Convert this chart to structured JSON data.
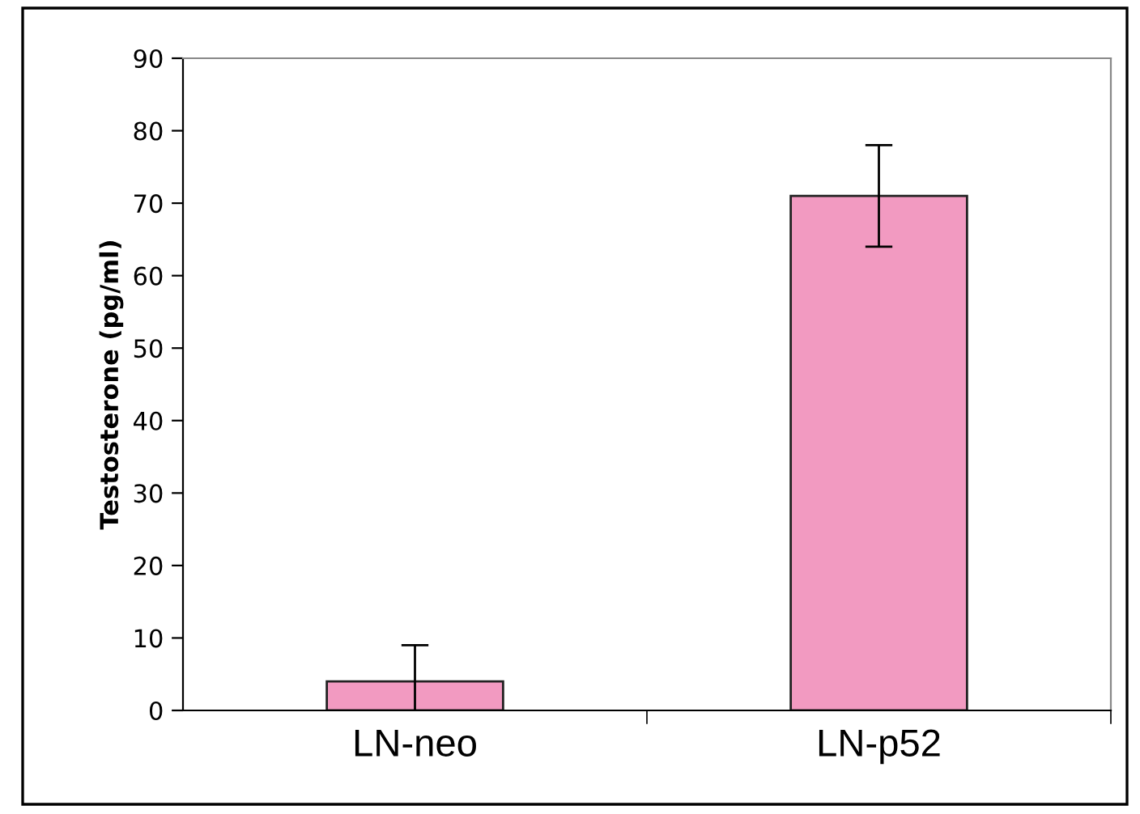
{
  "chart_data": {
    "type": "bar",
    "ylabel": "Testosterone (pg/ml)",
    "categories": [
      "LN-neo",
      "LN-p52"
    ],
    "values": [
      4,
      71
    ],
    "errors": [
      5,
      7
    ],
    "color": "#f29ac1",
    "ylim": [
      0,
      90
    ],
    "yticks": [
      0,
      10,
      20,
      30,
      40,
      50,
      60,
      70,
      80,
      90
    ],
    "grid": false,
    "legend": false
  }
}
